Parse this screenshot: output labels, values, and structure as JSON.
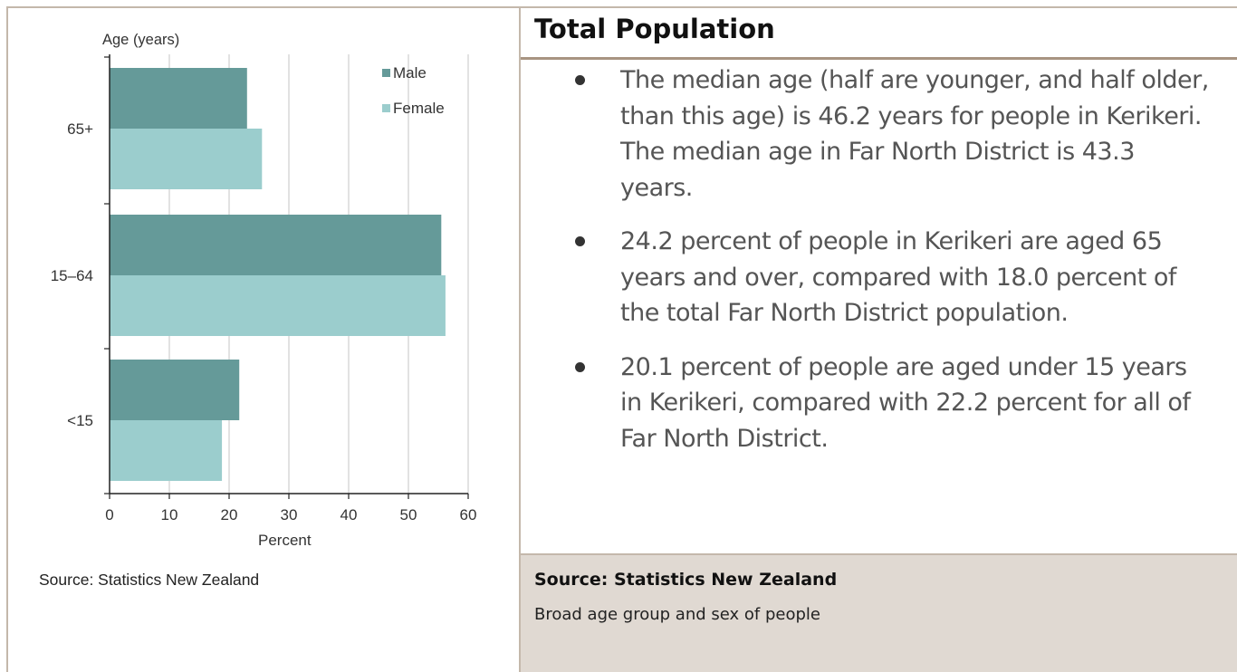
{
  "chart_data": {
    "type": "bar",
    "orientation": "horizontal",
    "categories": [
      "65+",
      "15–64",
      "<15"
    ],
    "series": [
      {
        "name": "Male",
        "values": [
          23.0,
          55.5,
          21.7
        ]
      },
      {
        "name": "Female",
        "values": [
          25.5,
          56.2,
          18.8
        ]
      }
    ],
    "xlabel": "Percent",
    "ylabel": "Age (years)",
    "xlim": [
      0,
      60
    ],
    "xticks": [
      "0",
      "10",
      "20",
      "30",
      "40",
      "50",
      "60"
    ],
    "grid": true,
    "legend": "top-right",
    "colors": {
      "Male": "#659a99",
      "Female": "#9bcdcd"
    },
    "source": "Source: Statistics New Zealand"
  },
  "panel": {
    "title": "Total Population",
    "bullets": [
      "The median age (half are younger, and half older, than this age) is 46.2 years for people in Kerikeri. The median age in Far North District is 43.3 years.",
      "24.2 percent of people in Kerikeri are aged 65 years and over, compared with 18.0 percent of the total Far North District population.",
      "20.1 percent of people are aged under 15 years in Kerikeri, compared with 22.2 percent for all of Far North District."
    ],
    "source_title": "Source: Statistics New Zealand",
    "source_subtitle": "Broad age group and sex of people"
  }
}
